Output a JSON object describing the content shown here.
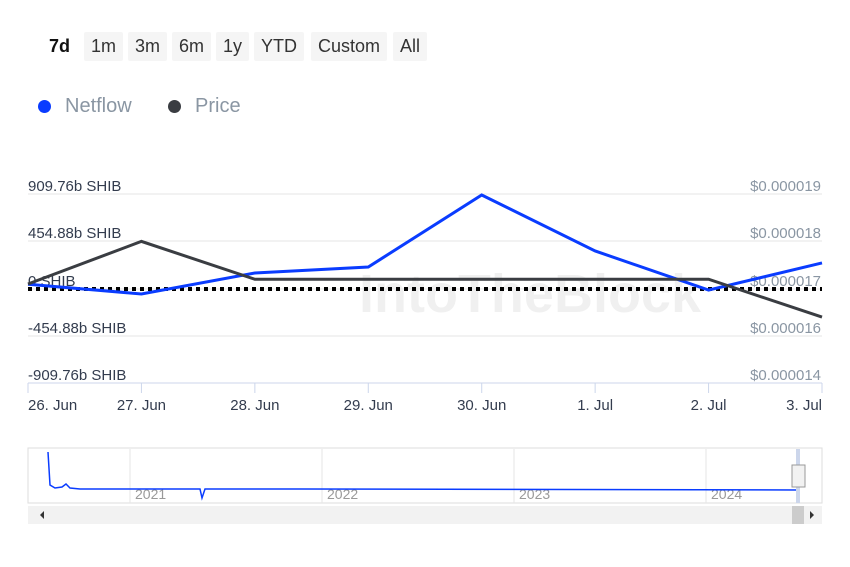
{
  "range_buttons": [
    "7d",
    "1m",
    "3m",
    "6m",
    "1y",
    "YTD",
    "Custom",
    "All"
  ],
  "active_range": "7d",
  "watermark": "IntoTheBlock",
  "navigator": {
    "years": [
      "2021",
      "2022",
      "2023",
      "2024"
    ]
  },
  "chart_data": {
    "type": "line",
    "categories": [
      "26. Jun",
      "27. Jun",
      "28. Jun",
      "29. Jun",
      "30. Jun",
      "1. Jul",
      "2. Jul",
      "3. Jul"
    ],
    "series": [
      {
        "name": "Netflow",
        "color": "#0a3cff",
        "axis": "left",
        "unit": "b SHIB",
        "values": [
          46,
          -48,
          155,
          213,
          909.76,
          368,
          -10,
          252
        ]
      },
      {
        "name": "Price",
        "color": "#3a3d42",
        "axis": "right",
        "unit": "USD",
        "values": [
          1.71e-05,
          1.8e-05,
          1.72e-05,
          1.72e-05,
          1.72e-05,
          1.72e-05,
          1.72e-05,
          1.64e-05
        ]
      }
    ],
    "left_ticks": [
      "909.76b SHIB",
      "454.88b SHIB",
      "0 SHIB",
      "-454.88b SHIB",
      "-909.76b SHIB"
    ],
    "right_ticks": [
      "$0.000019",
      "$0.000018",
      "$0.000017",
      "$0.000016",
      "$0.000014"
    ],
    "ylim_left": [
      -909.76,
      909.76
    ],
    "zero_line": "dotted",
    "legend_position": "top-left"
  }
}
